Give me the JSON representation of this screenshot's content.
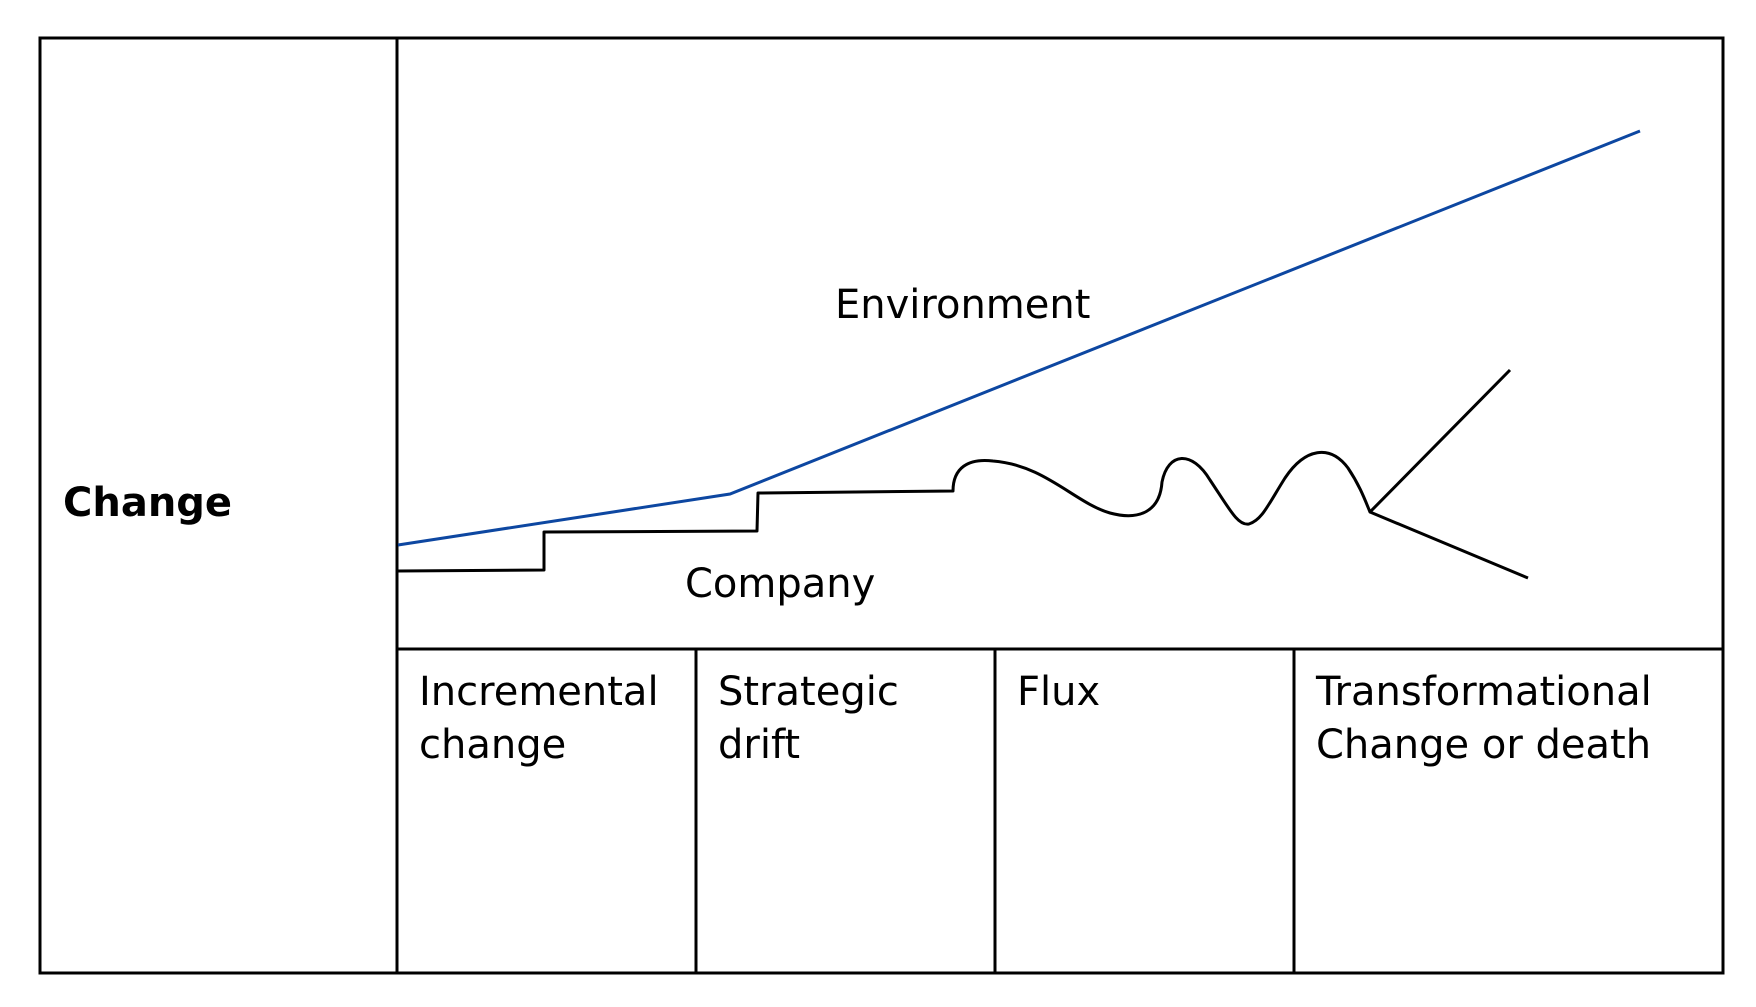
{
  "row_label": "Change",
  "curves": {
    "environment": {
      "label": "Environment",
      "color": "#0d47a1"
    },
    "company": {
      "label": "Company",
      "color": "#000000"
    }
  },
  "phases": [
    {
      "line1": "Incremental",
      "line2": "change"
    },
    {
      "line1": "Strategic",
      "line2": "drift"
    },
    {
      "line1": "Flux",
      "line2": ""
    },
    {
      "line1": "Transformational",
      "line2": "Change or death"
    }
  ]
}
